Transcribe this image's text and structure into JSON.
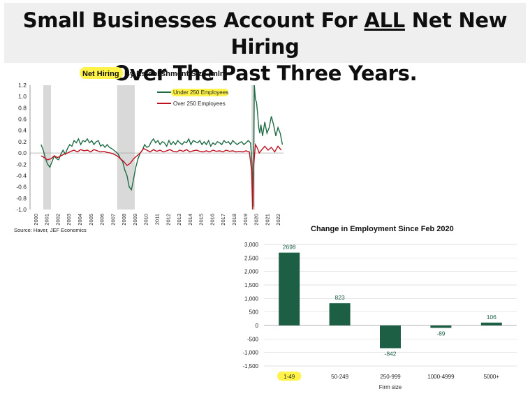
{
  "headline": {
    "line1_before": "Small Businesses Account For ",
    "line1_emphasis": "ALL",
    "line1_after": " Net New Hiring",
    "line2": "Over The Past Three Years."
  },
  "colors": {
    "highlight": "#fff34a",
    "under_250": "#1f6b45",
    "over_250": "#c0111f",
    "bar": "#1d5f45",
    "recession": "#d9d9d9"
  },
  "chart_data": [
    {
      "type": "line",
      "title_highlight": "Net Hiring",
      "title_rest": " By Establishment Size (mln)",
      "source": "Source: Haver, JEF Economics",
      "ylim": [
        -1.0,
        1.2
      ],
      "yticks": [
        "1.2",
        "1.0",
        "0.8",
        "0.6",
        "0.4",
        "0.2",
        "0.0",
        "-0.2",
        "-0.4",
        "-0.6",
        "-0.8",
        "-1.0"
      ],
      "xticks": [
        "2000",
        "2001",
        "2002",
        "2003",
        "2004",
        "2005",
        "2006",
        "2007",
        "2008",
        "2009",
        "2010",
        "2011",
        "2012",
        "2013",
        "2014",
        "2015",
        "2016",
        "2017",
        "2018",
        "2019",
        "2020",
        "2021",
        "2022"
      ],
      "xlim": [
        2000.0,
        2023.0
      ],
      "recessions": [
        [
          2001.2,
          2001.9
        ],
        [
          2007.9,
          2009.5
        ],
        [
          2020.1,
          2020.4
        ]
      ],
      "legend_position": "top-right",
      "series": [
        {
          "name": "Under 250 Employees",
          "name_highlighted": true,
          "x": [
            2001.0,
            2001.2,
            2001.4,
            2001.6,
            2001.8,
            2002.0,
            2002.2,
            2002.4,
            2002.6,
            2002.8,
            2003.0,
            2003.2,
            2003.4,
            2003.6,
            2003.8,
            2004.0,
            2004.2,
            2004.4,
            2004.6,
            2004.8,
            2005.0,
            2005.2,
            2005.4,
            2005.6,
            2005.8,
            2006.0,
            2006.2,
            2006.4,
            2006.6,
            2006.8,
            2007.0,
            2007.2,
            2007.4,
            2007.6,
            2007.8,
            2008.0,
            2008.2,
            2008.4,
            2008.6,
            2008.8,
            2009.0,
            2009.2,
            2009.4,
            2009.6,
            2009.8,
            2010.0,
            2010.2,
            2010.4,
            2010.6,
            2010.8,
            2011.0,
            2011.2,
            2011.4,
            2011.6,
            2011.8,
            2012.0,
            2012.2,
            2012.4,
            2012.6,
            2012.8,
            2013.0,
            2013.2,
            2013.4,
            2013.6,
            2013.8,
            2014.0,
            2014.2,
            2014.4,
            2014.6,
            2014.8,
            2015.0,
            2015.2,
            2015.4,
            2015.6,
            2015.8,
            2016.0,
            2016.2,
            2016.4,
            2016.6,
            2016.8,
            2017.0,
            2017.2,
            2017.4,
            2017.6,
            2017.8,
            2018.0,
            2018.2,
            2018.4,
            2018.6,
            2018.8,
            2019.0,
            2019.2,
            2019.4,
            2019.6,
            2019.8,
            2020.0,
            2020.15,
            2020.25,
            2020.35,
            2020.45,
            2020.55,
            2020.65,
            2020.75,
            2020.85,
            2020.95,
            2021.1,
            2021.3,
            2021.5,
            2021.7,
            2021.9,
            2022.1,
            2022.3,
            2022.5,
            2022.7,
            2022.9
          ],
          "y": [
            0.15,
            0.05,
            -0.1,
            -0.2,
            -0.25,
            -0.15,
            -0.05,
            -0.1,
            -0.12,
            -0.02,
            0.05,
            -0.02,
            0.08,
            0.15,
            0.12,
            0.22,
            0.18,
            0.25,
            0.15,
            0.22,
            0.2,
            0.25,
            0.18,
            0.22,
            0.15,
            0.2,
            0.22,
            0.12,
            0.15,
            0.1,
            0.15,
            0.1,
            0.08,
            0.05,
            0.02,
            -0.02,
            -0.1,
            -0.15,
            -0.3,
            -0.4,
            -0.6,
            -0.65,
            -0.45,
            -0.25,
            -0.1,
            0.0,
            0.05,
            0.15,
            0.1,
            0.12,
            0.2,
            0.25,
            0.18,
            0.22,
            0.15,
            0.2,
            0.18,
            0.12,
            0.22,
            0.15,
            0.2,
            0.15,
            0.22,
            0.18,
            0.15,
            0.2,
            0.18,
            0.25,
            0.15,
            0.22,
            0.2,
            0.18,
            0.22,
            0.15,
            0.2,
            0.15,
            0.22,
            0.12,
            0.18,
            0.15,
            0.2,
            0.18,
            0.15,
            0.22,
            0.18,
            0.2,
            0.15,
            0.22,
            0.18,
            0.15,
            0.18,
            0.2,
            0.15,
            0.18,
            0.22,
            0.18,
            -0.2,
            -0.95,
            1.2,
            0.95,
            0.9,
            0.7,
            0.45,
            0.35,
            0.5,
            0.3,
            0.55,
            0.35,
            0.45,
            0.65,
            0.5,
            0.3,
            0.45,
            0.35,
            0.15
          ]
        },
        {
          "name": "Over 250 Employees",
          "name_highlighted": false,
          "x": [
            2001.0,
            2001.3,
            2001.6,
            2001.9,
            2002.2,
            2002.5,
            2002.8,
            2003.1,
            2003.4,
            2003.7,
            2004.0,
            2004.3,
            2004.6,
            2004.9,
            2005.2,
            2005.5,
            2005.8,
            2006.1,
            2006.4,
            2006.7,
            2007.0,
            2007.3,
            2007.6,
            2007.9,
            2008.2,
            2008.5,
            2008.8,
            2009.1,
            2009.4,
            2009.7,
            2010.0,
            2010.3,
            2010.6,
            2010.9,
            2011.2,
            2011.5,
            2011.8,
            2012.1,
            2012.4,
            2012.7,
            2013.0,
            2013.3,
            2013.6,
            2013.9,
            2014.2,
            2014.5,
            2014.8,
            2015.1,
            2015.4,
            2015.7,
            2016.0,
            2016.3,
            2016.6,
            2016.9,
            2017.2,
            2017.5,
            2017.8,
            2018.1,
            2018.4,
            2018.7,
            2019.0,
            2019.3,
            2019.6,
            2019.9,
            2020.1,
            2020.2,
            2020.3,
            2020.45,
            2020.6,
            2020.8,
            2021.0,
            2021.3,
            2021.6,
            2021.9,
            2022.2,
            2022.5,
            2022.8
          ],
          "y": [
            -0.05,
            -0.08,
            -0.12,
            -0.1,
            -0.05,
            -0.08,
            -0.05,
            -0.02,
            0.0,
            0.03,
            0.05,
            0.02,
            0.06,
            0.04,
            0.05,
            0.02,
            0.06,
            0.04,
            0.02,
            0.03,
            0.01,
            0.0,
            -0.02,
            -0.05,
            -0.1,
            -0.15,
            -0.22,
            -0.18,
            -0.1,
            -0.05,
            0.0,
            0.08,
            0.05,
            0.02,
            0.06,
            0.03,
            0.05,
            0.02,
            0.04,
            0.06,
            0.03,
            0.02,
            0.05,
            0.03,
            0.06,
            0.02,
            0.04,
            0.05,
            0.03,
            0.02,
            0.04,
            0.02,
            0.05,
            0.03,
            0.04,
            0.02,
            0.05,
            0.03,
            0.04,
            0.02,
            0.03,
            0.02,
            0.04,
            0.02,
            -0.3,
            -1.0,
            -0.2,
            0.15,
            0.1,
            0.0,
            0.05,
            0.12,
            0.05,
            0.1,
            0.02,
            0.12,
            0.05
          ]
        }
      ]
    },
    {
      "type": "bar",
      "title": "Change in Employment Since Feb 2020",
      "xlabel": "Firm size",
      "ylim": [
        -1500,
        3000
      ],
      "yticks": [
        "3,000",
        "2,500",
        "2,000",
        "1,500",
        "1,000",
        "500",
        "0",
        "-500",
        "-1,000",
        "-1,500"
      ],
      "categories": [
        "1-49",
        "50-249",
        "250-999",
        "1000-4999",
        "5000+"
      ],
      "highlighted_category": "1-49",
      "values": [
        2698,
        823,
        -842,
        -89,
        106
      ],
      "value_labels": [
        "2698",
        "823",
        "-842",
        "-89",
        "106"
      ],
      "grid": true
    }
  ]
}
